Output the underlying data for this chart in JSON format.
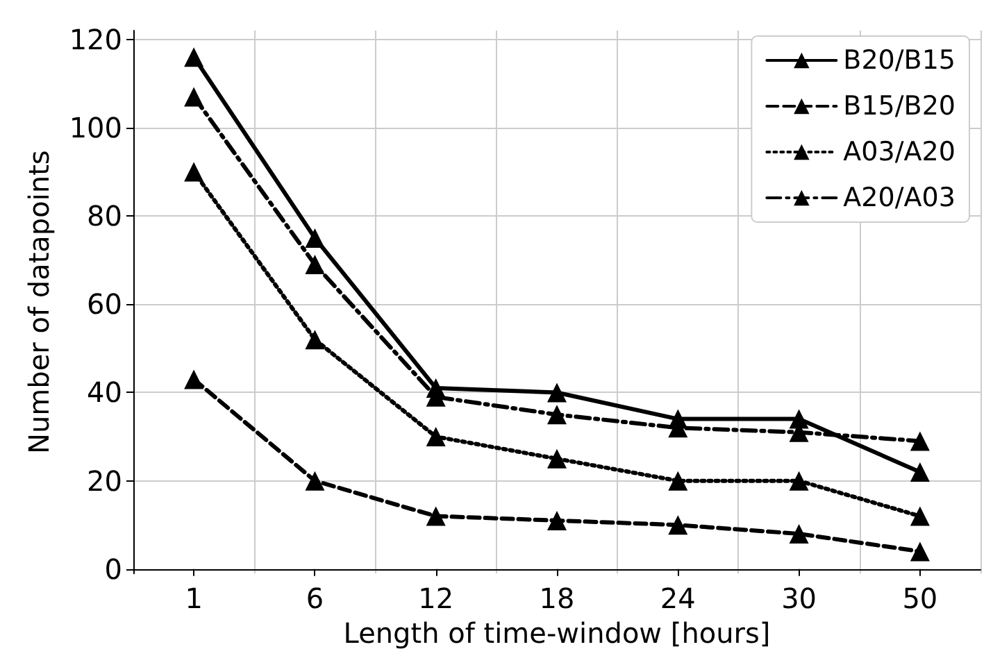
{
  "chart_data": {
    "type": "line",
    "xlabel": "Length of time-window [hours]",
    "ylabel": "Number of datapoints",
    "categories": [
      "1",
      "6",
      "12",
      "18",
      "24",
      "30",
      "50"
    ],
    "series": [
      {
        "name": "B20/B15",
        "color": "#000000",
        "line_style": "solid",
        "values": [
          116,
          75,
          41,
          40,
          34,
          34,
          22
        ]
      },
      {
        "name": "B15/B20",
        "color": "#000000",
        "line_style": "dashed",
        "values": [
          43,
          20,
          12,
          11,
          10,
          8,
          4
        ]
      },
      {
        "name": "A03/A20",
        "color": "#000000",
        "line_style": "dotted",
        "values": [
          90,
          52,
          30,
          25,
          20,
          20,
          12
        ]
      },
      {
        "name": "A20/A03",
        "color": "#000000",
        "line_style": "dashdot",
        "values": [
          107,
          69,
          39,
          35,
          32,
          31,
          29
        ]
      }
    ],
    "ylim": [
      -1,
      122
    ],
    "yticks": [
      0,
      20,
      40,
      60,
      80,
      100,
      120
    ],
    "grid": true,
    "legend": "top right",
    "marker": "triangle"
  }
}
